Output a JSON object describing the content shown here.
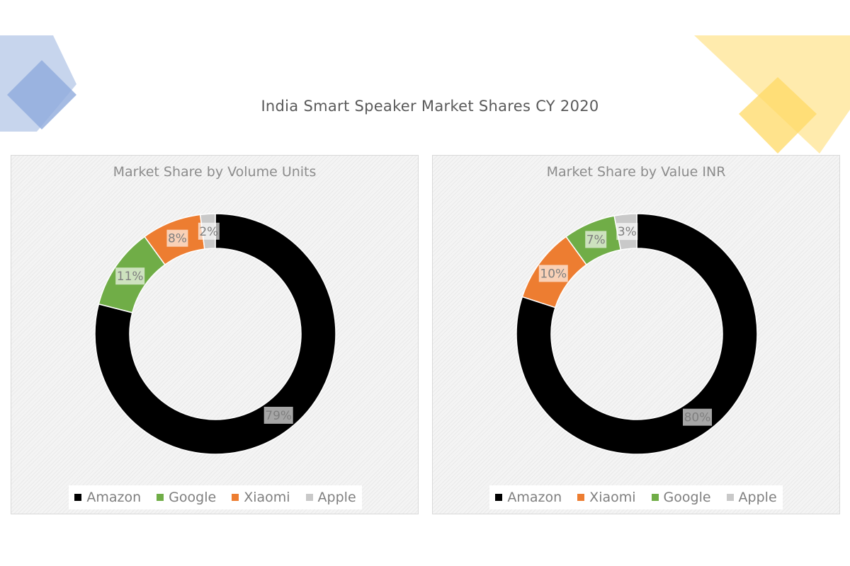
{
  "title": "India Smart Speaker Market Shares CY 2020",
  "colors": {
    "Amazon": "#000000",
    "Google": "#70ad47",
    "Xiaomi": "#ed7d31",
    "Apple": "#c9c9c9",
    "deco_blue": "#8faadc",
    "deco_yellow": "#ffd966"
  },
  "chart_data": [
    {
      "type": "pie",
      "title": "Market Share by Volume Units",
      "categories": [
        "Amazon",
        "Google",
        "Xiaomi",
        "Apple"
      ],
      "values": [
        79,
        11,
        8,
        2
      ],
      "labels": [
        "79%",
        "11%",
        "8%",
        "2%"
      ],
      "legend": [
        "Amazon",
        "Google",
        "Xiaomi",
        "Apple"
      ],
      "legend_position": "bottom"
    },
    {
      "type": "pie",
      "title": "Market Share by Value INR",
      "categories": [
        "Amazon",
        "Xiaomi",
        "Google",
        "Apple"
      ],
      "values": [
        80,
        10,
        7,
        3
      ],
      "labels": [
        "80%",
        "10%",
        "7%",
        "3%"
      ],
      "legend": [
        "Amazon",
        "Xiaomi",
        "Google",
        "Apple"
      ],
      "legend_position": "bottom"
    }
  ]
}
